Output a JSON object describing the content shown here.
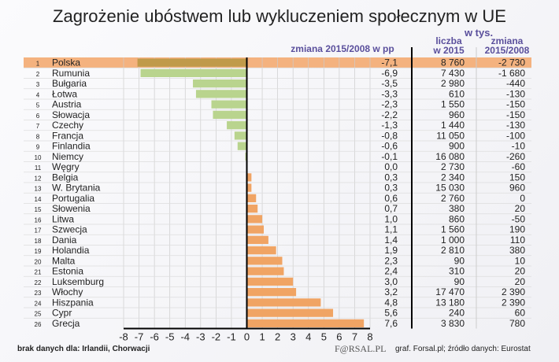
{
  "title": "Zagrożenie ubóstwem lub wykluczeniem społecznym w UE",
  "headers": {
    "change_pp": "zmiana 2015/2008 w pp",
    "unit": "w tys.",
    "count_l1": "liczba",
    "count_l2": "w 2015",
    "change_l1": "zmiana",
    "change_l2": "2015/2008"
  },
  "footer": {
    "note": "brak danych dla: Irlandii, Chorwacji",
    "logo": "F@RSAL.PL",
    "source": "graf. Forsal.pl; źródło danych: Eurostat"
  },
  "colors": {
    "negative": "#b9d48e",
    "highlight_bar": "#c09a4a",
    "positive": "#f0a464",
    "highlight_row": "#f4b27f"
  },
  "chart_data": {
    "type": "bar",
    "orientation": "horizontal",
    "xlim": [
      -8,
      8
    ],
    "grid": true,
    "xticks": [
      "-8",
      "-7",
      "-6",
      "-5",
      "-4",
      "-3",
      "-2",
      "-1",
      "0",
      "1",
      "2",
      "3",
      "4",
      "5",
      "6",
      "7",
      "8"
    ],
    "rows": [
      {
        "rank": "1",
        "country": "Polska",
        "change_pp": -7.1,
        "label": "-7,1",
        "count": "8 760",
        "change": "-2 730"
      },
      {
        "rank": "2",
        "country": "Rumunia",
        "change_pp": -6.9,
        "label": "-6,9",
        "count": "7 430",
        "change": "-1 680"
      },
      {
        "rank": "3",
        "country": "Bułgaria",
        "change_pp": -3.5,
        "label": "-3,5",
        "count": "2 980",
        "change": "-440"
      },
      {
        "rank": "4",
        "country": "Łotwa",
        "change_pp": -3.3,
        "label": "-3,3",
        "count": "610",
        "change": "-130"
      },
      {
        "rank": "5",
        "country": "Austria",
        "change_pp": -2.3,
        "label": "-2,3",
        "count": "1 550",
        "change": "-150"
      },
      {
        "rank": "6",
        "country": "Słowacja",
        "change_pp": -2.2,
        "label": "-2,2",
        "count": "960",
        "change": "-150"
      },
      {
        "rank": "7",
        "country": "Czechy",
        "change_pp": -1.3,
        "label": "-1,3",
        "count": "1 440",
        "change": "-130"
      },
      {
        "rank": "8",
        "country": "Francja",
        "change_pp": -0.8,
        "label": "-0,8",
        "count": "11 050",
        "change": "-100"
      },
      {
        "rank": "9",
        "country": "Finlandia",
        "change_pp": -0.6,
        "label": "-0,6",
        "count": "900",
        "change": "-10"
      },
      {
        "rank": "10",
        "country": "Niemcy",
        "change_pp": -0.1,
        "label": "-0,1",
        "count": "16 080",
        "change": "-260"
      },
      {
        "rank": "11",
        "country": "Węgry",
        "change_pp": 0.0,
        "label": "0,0",
        "count": "2 730",
        "change": "-60"
      },
      {
        "rank": "12",
        "country": "Belgia",
        "change_pp": 0.3,
        "label": "0,3",
        "count": "2 340",
        "change": "150"
      },
      {
        "rank": "13",
        "country": "W. Brytania",
        "change_pp": 0.3,
        "label": "0,3",
        "count": "15 030",
        "change": "960"
      },
      {
        "rank": "14",
        "country": "Portugalia",
        "change_pp": 0.6,
        "label": "0,6",
        "count": "2 760",
        "change": "0"
      },
      {
        "rank": "15",
        "country": "Słowenia",
        "change_pp": 0.7,
        "label": "0,7",
        "count": "380",
        "change": "20"
      },
      {
        "rank": "16",
        "country": "Litwa",
        "change_pp": 1.0,
        "label": "1,0",
        "count": "860",
        "change": "-50"
      },
      {
        "rank": "17",
        "country": "Szwecja",
        "change_pp": 1.1,
        "label": "1,1",
        "count": "1 560",
        "change": "190"
      },
      {
        "rank": "18",
        "country": "Dania",
        "change_pp": 1.4,
        "label": "1,4",
        "count": "1 000",
        "change": "110"
      },
      {
        "rank": "19",
        "country": "Holandia",
        "change_pp": 1.9,
        "label": "1,9",
        "count": "2 810",
        "change": "380"
      },
      {
        "rank": "20",
        "country": "Malta",
        "change_pp": 2.3,
        "label": "2,3",
        "count": "90",
        "change": "10"
      },
      {
        "rank": "21",
        "country": "Estonia",
        "change_pp": 2.4,
        "label": "2,4",
        "count": "310",
        "change": "20"
      },
      {
        "rank": "22",
        "country": "Luksemburg",
        "change_pp": 3.0,
        "label": "3,0",
        "count": "90",
        "change": "20"
      },
      {
        "rank": "23",
        "country": "Włochy",
        "change_pp": 3.2,
        "label": "3,2",
        "count": "17 470",
        "change": "2 390"
      },
      {
        "rank": "24",
        "country": "Hiszpania",
        "change_pp": 4.8,
        "label": "4,8",
        "count": "13 180",
        "change": "2 390"
      },
      {
        "rank": "25",
        "country": "Cypr",
        "change_pp": 5.6,
        "label": "5,6",
        "count": "240",
        "change": "60"
      },
      {
        "rank": "26",
        "country": "Grecja",
        "change_pp": 7.6,
        "label": "7,6",
        "count": "3 830",
        "change": "780"
      }
    ]
  }
}
